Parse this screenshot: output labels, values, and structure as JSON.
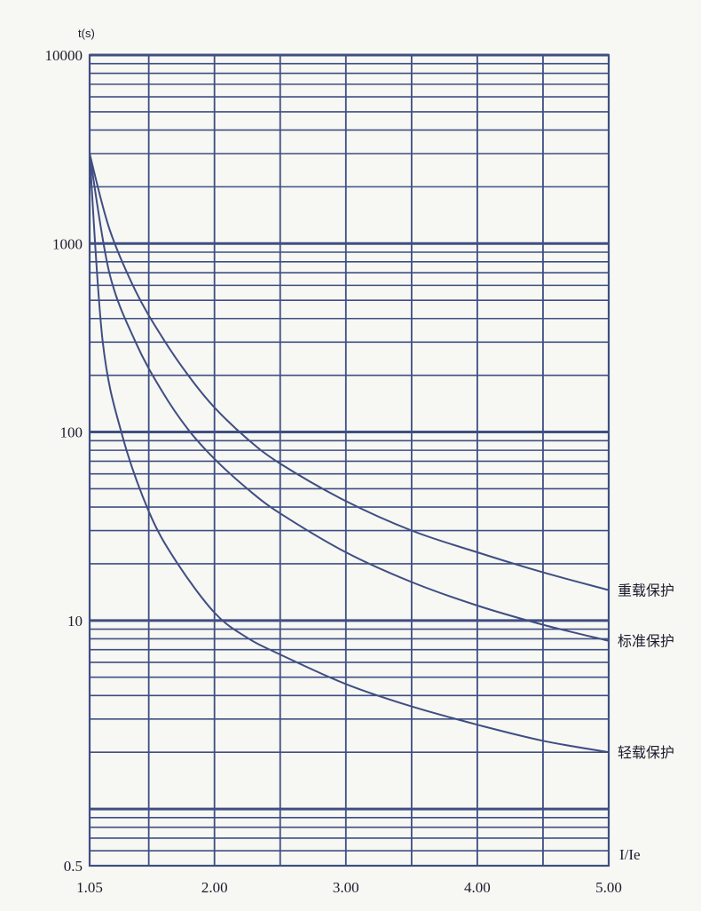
{
  "chart_data": {
    "type": "line",
    "y_scale": "log",
    "ylabel": "t(s)",
    "xlabel": "I/Ie",
    "xlim": [
      1.05,
      5.0
    ],
    "ylim": [
      0.5,
      10000
    ],
    "x_tick_labels": [
      "1.05",
      "2.00",
      "3.00",
      "4.00",
      "5.00"
    ],
    "x_ticks": [
      1.05,
      2.0,
      3.0,
      4.0,
      5.0
    ],
    "y_tick_labels": [
      "10000",
      "1000",
      "100",
      "10",
      "0.5"
    ],
    "y_ticks": [
      10000,
      1000,
      100,
      10,
      0.5
    ],
    "grid": true,
    "series": [
      {
        "name": "重载保护",
        "x": [
          1.05,
          1.2,
          1.4,
          1.6,
          1.8,
          2.0,
          2.25,
          2.5,
          3.0,
          3.5,
          4.0,
          4.5,
          5.0
        ],
        "values": [
          3000,
          1200,
          560,
          320,
          200,
          135,
          92,
          68,
          43,
          30,
          23,
          18,
          14.5
        ]
      },
      {
        "name": "标准保护",
        "x": [
          1.05,
          1.2,
          1.4,
          1.6,
          1.8,
          2.0,
          2.25,
          2.5,
          3.0,
          3.5,
          4.0,
          4.5,
          5.0
        ],
        "values": [
          3000,
          700,
          300,
          165,
          103,
          72,
          50,
          37,
          23,
          16,
          12,
          9.5,
          7.8
        ]
      },
      {
        "name": "轻载保护",
        "x": [
          1.05,
          1.15,
          1.3,
          1.5,
          1.7,
          2.0,
          2.25,
          2.5,
          3.0,
          3.5,
          4.0,
          4.5,
          5.0
        ],
        "values": [
          3000,
          300,
          95,
          38,
          21,
          11,
          8.1,
          6.6,
          4.6,
          3.5,
          2.8,
          2.3,
          2.0
        ]
      }
    ],
    "colors": {
      "grid": "#3f4e83",
      "curve": "#3f4e83",
      "text": "#1c1c2e"
    }
  }
}
